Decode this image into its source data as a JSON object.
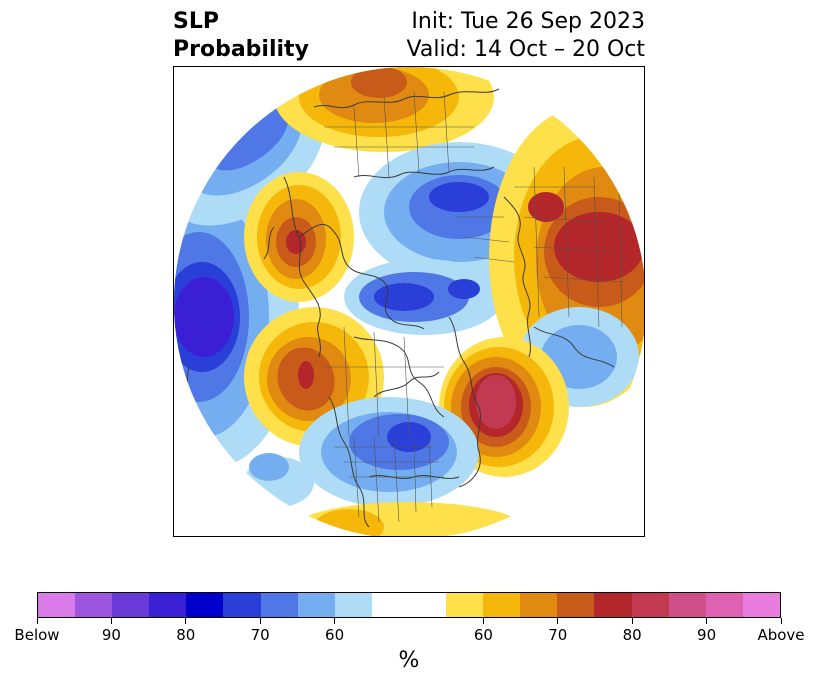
{
  "title": {
    "left_line1": "SLP",
    "left_line2": "Probability",
    "right_line1": "Init: Tue 26 Sep 2023",
    "right_line2": "Valid: 14 Oct – 20 Oct"
  },
  "colorbar": {
    "unit": "%",
    "colors": [
      "#d97ae8",
      "#9e56e0",
      "#6a3ad8",
      "#3a1fd4",
      "#0000cc",
      "#2a3ed8",
      "#4f77e6",
      "#74aef0",
      "#aedcf7",
      "#ffffff",
      "#ffffff",
      "#fde04a",
      "#f5b70a",
      "#e08a12",
      "#c85a1a",
      "#b3272a",
      "#c23a52",
      "#cf5088",
      "#dd62b2",
      "#e87ddf"
    ],
    "tick_labels": [
      "Below",
      "90",
      "80",
      "70",
      "60",
      "60",
      "70",
      "80",
      "90",
      "Above"
    ]
  }
}
